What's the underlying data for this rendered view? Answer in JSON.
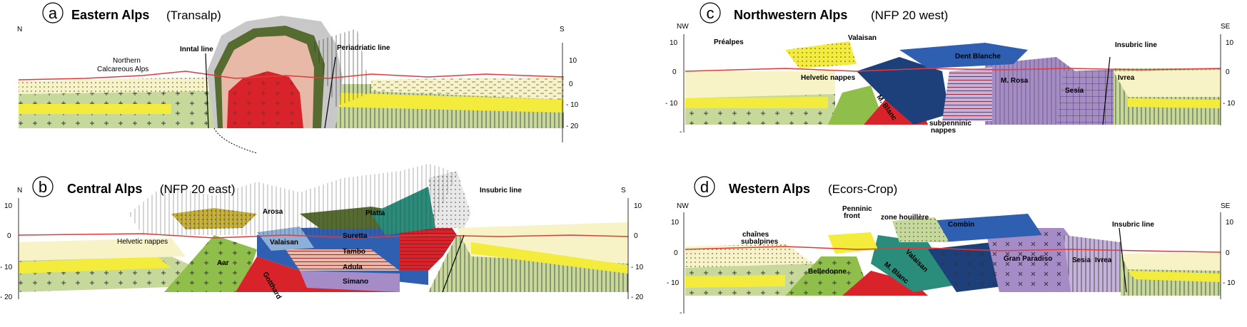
{
  "panels": {
    "a": {
      "letter": "a",
      "title_bold": "Eastern Alps",
      "title_paren": "(Transalp)",
      "left_dir": "N",
      "right_dir": "S",
      "ticks": [
        "10",
        "0",
        "- 10",
        "- 20"
      ],
      "labels": {
        "inntal": "Inntal line",
        "periadriatic": "Periadriatic line",
        "northern1": "Northern",
        "northern2": "Calcareous Alps"
      }
    },
    "b": {
      "letter": "b",
      "title_bold": "Central Alps",
      "title_paren": "(NFP 20 east)",
      "left_dir": "N",
      "right_dir": "S",
      "left_ticks": [
        "10",
        "0",
        "- 10",
        "- 20"
      ],
      "right_ticks": [
        "10",
        "0",
        "- 10",
        "- 20"
      ],
      "labels": {
        "arosa": "Arosa",
        "platta": "Platta",
        "insubric": "Insubric line",
        "helvetic": "Helvetic nappes",
        "valaisan": "Valaisan",
        "suretta": "Suretta",
        "tambo": "Tambo",
        "adula": "Adula",
        "simano": "Simano",
        "aar": "Aar",
        "gotthard": "Gotthard"
      }
    },
    "c": {
      "letter": "c",
      "title_bold": "Northwestern Alps",
      "title_paren": "(NFP 20 west)",
      "left_dir": "NW",
      "right_dir": "SE",
      "left_ticks": [
        "10",
        "0",
        "- 10",
        "-"
      ],
      "right_ticks": [
        "10",
        "0",
        "- 10"
      ],
      "labels": {
        "prealpes": "Préalpes",
        "valaisan": "Valaisan",
        "dent_blanche": "Dent Blanche",
        "insubric": "Insubric line",
        "helvetic": "Helvetic nappes",
        "mrosa": "M. Rosa",
        "sesia": "Sesia",
        "ivrea": "Ivrea",
        "mblanc": "M. Blanc",
        "subpenninic1": "subpenninic",
        "subpenninic2": "nappes"
      }
    },
    "d": {
      "letter": "d",
      "title_bold": "Western Alps",
      "title_paren": "(Ecors-Crop)",
      "left_dir": "NW",
      "right_dir": "SE",
      "left_ticks": [
        "10",
        "0",
        "- 10",
        "-"
      ],
      "right_ticks": [
        "10",
        "0",
        "- 10"
      ],
      "labels": {
        "penninic1": "Penninic",
        "penninic2": "front",
        "zone_houillere": "zone houillère",
        "combin": "Combin",
        "insubric": "Insubric line",
        "chaines1": "chaînes",
        "chaines2": "subalpines",
        "gran_paradiso": "Gran Paradiso",
        "sesia": "Sesia",
        "ivrea": "Ivrea",
        "belledonne": "Belledonne",
        "mblanc": "M. Blanc",
        "valaisan": "Valaisan"
      }
    }
  },
  "colors": {
    "crust_green": "#c6d99a",
    "bright_green": "#8fbf4a",
    "yellow": "#f4ec3c",
    "pale_yellow": "#f7f3c6",
    "red": "#d8232a",
    "pink": "#e9b9a8",
    "grey": "#c8c8c8",
    "dark_green": "#556b2f",
    "blue": "#2f5fb0",
    "navy": "#1d3f7a",
    "purple": "#a58cc6",
    "lavender": "#c6b3dc",
    "topo_red": "#e23a3a"
  }
}
